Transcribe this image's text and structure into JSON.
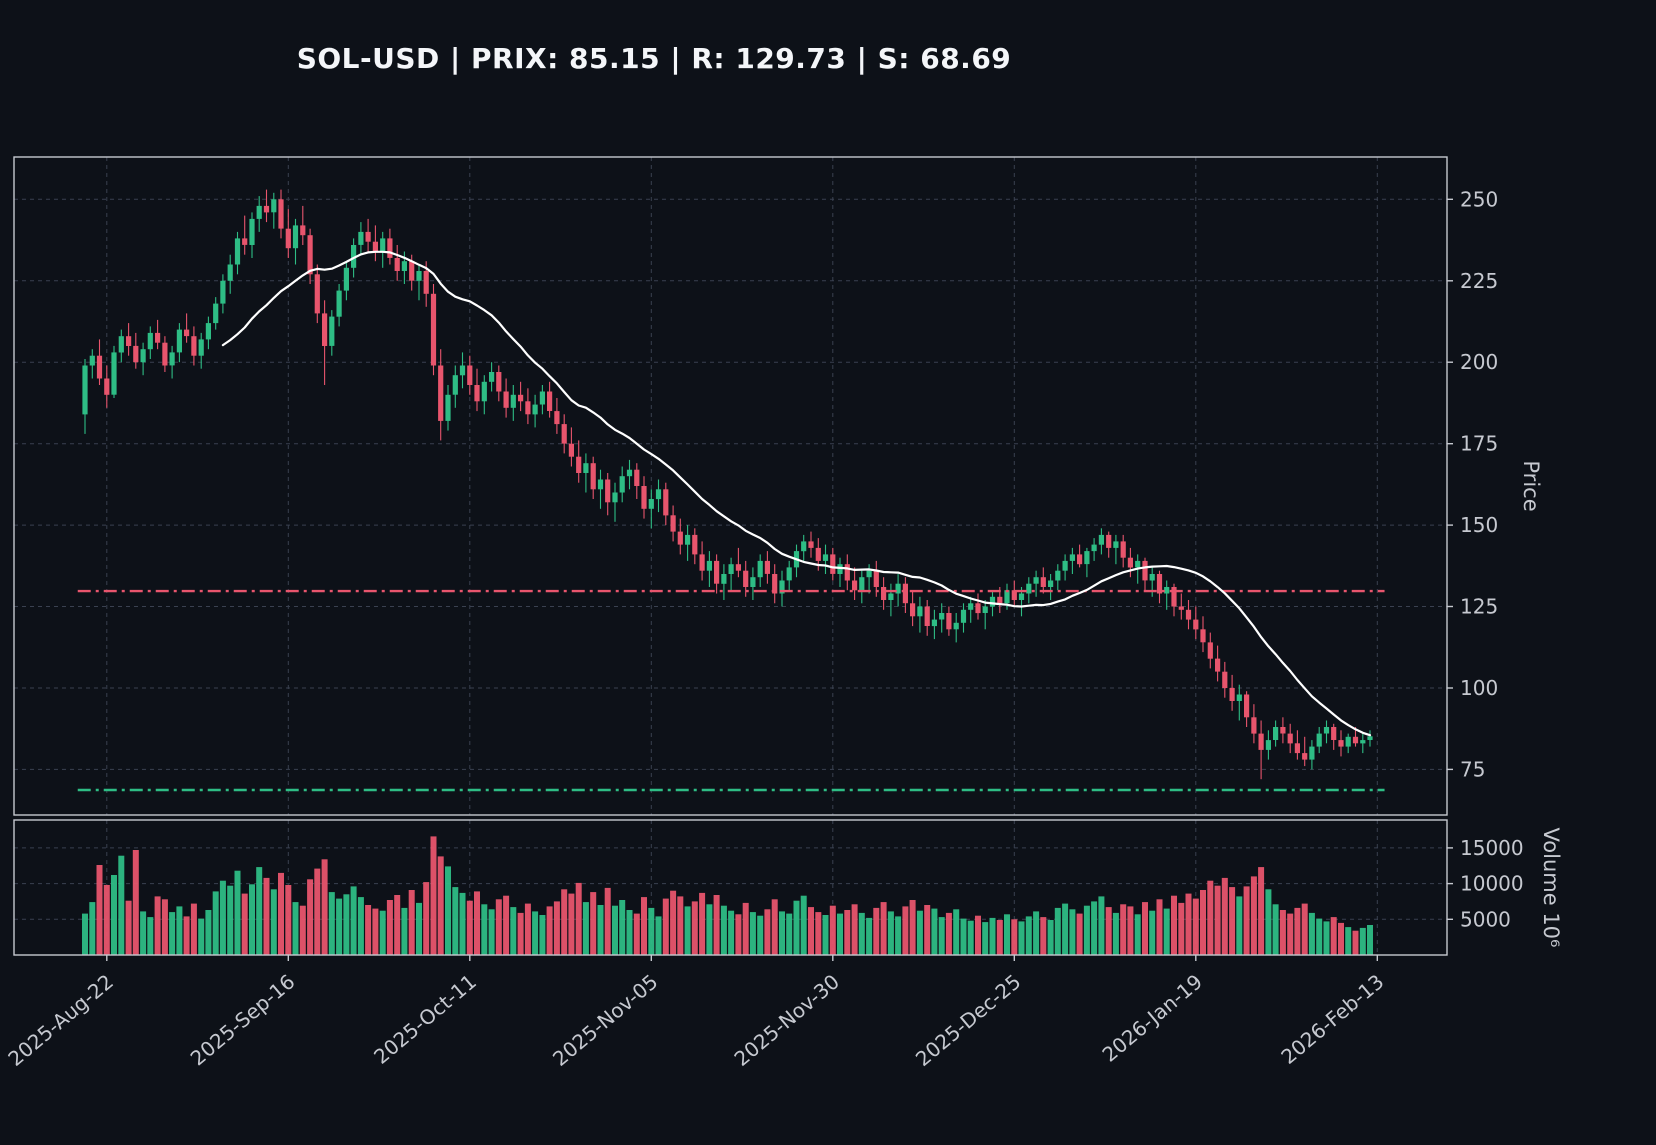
{
  "title": "SOL-USD | PRIX: 85.15 | R: 129.73 | S: 68.69",
  "chart_data": {
    "type": "candlestick",
    "title": "SOL-USD | PRIX: 85.15 | R: 129.73 | S: 68.69",
    "price_axis_label": "Price",
    "volume_axis_label": "Volume  10⁶",
    "last_price": 85.15,
    "resistance": 129.73,
    "support": 68.69,
    "moving_average_window": 20,
    "ylim": [
      61,
      263
    ],
    "vol_ylim": [
      0,
      18900
    ],
    "price_ticks": [
      75,
      100,
      125,
      150,
      175,
      200,
      225,
      250
    ],
    "volume_ticks": [
      5000,
      10000,
      15000
    ],
    "x_ticks": [
      {
        "index": 3,
        "label": "2025-Aug-22"
      },
      {
        "index": 28,
        "label": "2025-Sep-16"
      },
      {
        "index": 53,
        "label": "2025-Oct-11"
      },
      {
        "index": 78,
        "label": "2025-Nov-05"
      },
      {
        "index": 103,
        "label": "2025-Nov-30"
      },
      {
        "index": 128,
        "label": "2025-Dec-25"
      },
      {
        "index": 153,
        "label": "2026-Jan-19"
      },
      {
        "index": 178,
        "label": "2026-Feb-13"
      }
    ],
    "colors": {
      "bg": "#0d1118",
      "up": "#2ebd85",
      "down": "#e8556d",
      "ma": "#ffffff",
      "resistance": "#e8556d",
      "support": "#2ebd85",
      "grid": "#3a4150",
      "frame": "#c6c9d0",
      "text": "#c6c9d0",
      "title": "#f4f6f9"
    },
    "candles": [
      [
        184,
        201,
        178,
        199,
        5800
      ],
      [
        199,
        204,
        195,
        202,
        7400
      ],
      [
        202,
        207,
        193,
        195,
        12600
      ],
      [
        195,
        199,
        186,
        190,
        9800
      ],
      [
        190,
        205,
        189,
        203,
        11200
      ],
      [
        203,
        210,
        200,
        208,
        13900
      ],
      [
        208,
        212,
        202,
        205,
        7600
      ],
      [
        205,
        209,
        198,
        200,
        14700
      ],
      [
        200,
        206,
        196,
        204,
        6100
      ],
      [
        204,
        211,
        201,
        209,
        5300
      ],
      [
        209,
        213,
        204,
        206,
        8200
      ],
      [
        206,
        208,
        197,
        199,
        7800
      ],
      [
        199,
        205,
        195,
        203,
        6000
      ],
      [
        203,
        212,
        200,
        210,
        6800
      ],
      [
        210,
        215,
        206,
        208,
        5400
      ],
      [
        208,
        211,
        199,
        202,
        7200
      ],
      [
        202,
        209,
        198,
        207,
        5100
      ],
      [
        207,
        214,
        204,
        212,
        6300
      ],
      [
        212,
        220,
        210,
        218,
        8900
      ],
      [
        218,
        227,
        215,
        225,
        10400
      ],
      [
        225,
        233,
        221,
        230,
        9700
      ],
      [
        230,
        240,
        227,
        238,
        11800
      ],
      [
        238,
        245,
        233,
        236,
        8600
      ],
      [
        236,
        246,
        232,
        244,
        9900
      ],
      [
        244,
        251,
        240,
        248,
        12300
      ],
      [
        248,
        253,
        243,
        246,
        10800
      ],
      [
        246,
        252,
        241,
        250,
        9200
      ],
      [
        250,
        253,
        238,
        241,
        11500
      ],
      [
        241,
        247,
        232,
        235,
        9800
      ],
      [
        235,
        244,
        230,
        242,
        7400
      ],
      [
        242,
        248,
        236,
        239,
        6900
      ],
      [
        239,
        241,
        224,
        227,
        10600
      ],
      [
        227,
        230,
        212,
        215,
        12100
      ],
      [
        215,
        219,
        193,
        205,
        13400
      ],
      [
        205,
        216,
        202,
        214,
        8800
      ],
      [
        214,
        224,
        211,
        222,
        7900
      ],
      [
        222,
        231,
        219,
        229,
        8500
      ],
      [
        229,
        238,
        226,
        236,
        9600
      ],
      [
        236,
        243,
        233,
        240,
        8100
      ],
      [
        240,
        244,
        234,
        237,
        7000
      ],
      [
        237,
        242,
        231,
        234,
        6500
      ],
      [
        234,
        240,
        229,
        238,
        6200
      ],
      [
        238,
        241,
        230,
        232,
        7700
      ],
      [
        232,
        236,
        225,
        228,
        8400
      ],
      [
        228,
        234,
        224,
        231,
        6600
      ],
      [
        231,
        233,
        222,
        225,
        9100
      ],
      [
        225,
        230,
        219,
        228,
        7300
      ],
      [
        228,
        231,
        217,
        221,
        10200
      ],
      [
        221,
        224,
        196,
        199,
        16600
      ],
      [
        199,
        204,
        176,
        182,
        13800
      ],
      [
        182,
        193,
        179,
        190,
        12400
      ],
      [
        190,
        199,
        186,
        196,
        9500
      ],
      [
        196,
        203,
        192,
        199,
        8700
      ],
      [
        199,
        202,
        190,
        193,
        7600
      ],
      [
        193,
        198,
        185,
        188,
        8900
      ],
      [
        188,
        196,
        184,
        194,
        7100
      ],
      [
        194,
        200,
        191,
        197,
        6400
      ],
      [
        197,
        199,
        188,
        191,
        7800
      ],
      [
        191,
        195,
        183,
        186,
        8300
      ],
      [
        186,
        193,
        182,
        190,
        6700
      ],
      [
        190,
        194,
        185,
        188,
        5900
      ],
      [
        188,
        192,
        181,
        184,
        7200
      ],
      [
        184,
        190,
        180,
        187,
        6100
      ],
      [
        187,
        193,
        184,
        191,
        5600
      ],
      [
        191,
        194,
        183,
        185,
        6800
      ],
      [
        185,
        189,
        178,
        181,
        7500
      ],
      [
        181,
        184,
        172,
        175,
        9200
      ],
      [
        175,
        180,
        168,
        171,
        8600
      ],
      [
        171,
        176,
        163,
        166,
        10100
      ],
      [
        166,
        172,
        160,
        169,
        7400
      ],
      [
        169,
        171,
        158,
        161,
        8800
      ],
      [
        161,
        167,
        155,
        164,
        7000
      ],
      [
        164,
        166,
        153,
        157,
        9400
      ],
      [
        157,
        163,
        151,
        160,
        6900
      ],
      [
        160,
        168,
        157,
        165,
        7700
      ],
      [
        165,
        170,
        161,
        167,
        6300
      ],
      [
        167,
        169,
        158,
        162,
        5800
      ],
      [
        162,
        165,
        152,
        155,
        8100
      ],
      [
        155,
        161,
        149,
        158,
        6600
      ],
      [
        158,
        164,
        154,
        161,
        5400
      ],
      [
        161,
        163,
        150,
        153,
        7900
      ],
      [
        153,
        156,
        145,
        148,
        9000
      ],
      [
        148,
        152,
        141,
        144,
        8200
      ],
      [
        144,
        150,
        139,
        147,
        6800
      ],
      [
        147,
        149,
        138,
        141,
        7500
      ],
      [
        141,
        145,
        133,
        136,
        8700
      ],
      [
        136,
        142,
        131,
        139,
        7100
      ],
      [
        139,
        141,
        129,
        132,
        8400
      ],
      [
        132,
        138,
        127,
        135,
        6900
      ],
      [
        135,
        140,
        130,
        138,
        6200
      ],
      [
        138,
        143,
        134,
        136,
        5700
      ],
      [
        136,
        139,
        128,
        131,
        7300
      ],
      [
        131,
        137,
        127,
        134,
        6000
      ],
      [
        134,
        141,
        131,
        139,
        5500
      ],
      [
        139,
        142,
        132,
        135,
        6400
      ],
      [
        135,
        138,
        126,
        129,
        7800
      ],
      [
        129,
        136,
        125,
        133,
        6100
      ],
      [
        133,
        139,
        130,
        137,
        5800
      ],
      [
        137,
        144,
        134,
        142,
        7600
      ],
      [
        142,
        147,
        139,
        145,
        8300
      ],
      [
        145,
        148,
        140,
        143,
        6700
      ],
      [
        143,
        146,
        136,
        139,
        6000
      ],
      [
        139,
        144,
        135,
        141,
        5600
      ],
      [
        141,
        143,
        133,
        135,
        6900
      ],
      [
        135,
        140,
        131,
        138,
        5800
      ],
      [
        138,
        141,
        130,
        133,
        6300
      ],
      [
        133,
        137,
        127,
        130,
        7100
      ],
      [
        130,
        136,
        126,
        134,
        5900
      ],
      [
        134,
        138,
        129,
        136,
        5200
      ],
      [
        136,
        139,
        128,
        131,
        6600
      ],
      [
        131,
        134,
        124,
        127,
        7400
      ],
      [
        127,
        132,
        122,
        129,
        6100
      ],
      [
        129,
        135,
        125,
        132,
        5400
      ],
      [
        132,
        134,
        123,
        126,
        6800
      ],
      [
        126,
        130,
        119,
        122,
        7700
      ],
      [
        122,
        128,
        117,
        125,
        6200
      ],
      [
        125,
        127,
        116,
        119,
        7000
      ],
      [
        119,
        124,
        115,
        121,
        6500
      ],
      [
        121,
        126,
        117,
        123,
        5300
      ],
      [
        123,
        125,
        116,
        118,
        5900
      ],
      [
        118,
        123,
        114,
        120,
        6400
      ],
      [
        120,
        126,
        117,
        124,
        5100
      ],
      [
        124,
        128,
        120,
        126,
        4800
      ],
      [
        126,
        129,
        121,
        123,
        5500
      ],
      [
        123,
        127,
        118,
        125,
        4600
      ],
      [
        125,
        130,
        122,
        128,
        5200
      ],
      [
        128,
        131,
        123,
        126,
        4900
      ],
      [
        126,
        132,
        124,
        130,
        5700
      ],
      [
        130,
        133,
        125,
        127,
        5000
      ],
      [
        127,
        131,
        122,
        129,
        4700
      ],
      [
        129,
        134,
        126,
        132,
        5400
      ],
      [
        132,
        136,
        128,
        134,
        6100
      ],
      [
        134,
        137,
        129,
        131,
        5300
      ],
      [
        131,
        135,
        127,
        133,
        4900
      ],
      [
        133,
        138,
        130,
        136,
        6600
      ],
      [
        136,
        141,
        133,
        139,
        7200
      ],
      [
        139,
        143,
        135,
        141,
        6400
      ],
      [
        141,
        144,
        137,
        138,
        5800
      ],
      [
        138,
        143,
        134,
        142,
        6900
      ],
      [
        142,
        146,
        139,
        144,
        7500
      ],
      [
        144,
        149,
        141,
        147,
        8200
      ],
      [
        147,
        148,
        140,
        143,
        6700
      ],
      [
        143,
        147,
        138,
        145,
        5900
      ],
      [
        145,
        147,
        137,
        140,
        7100
      ],
      [
        140,
        143,
        134,
        137,
        6800
      ],
      [
        137,
        141,
        132,
        139,
        5700
      ],
      [
        139,
        140,
        130,
        133,
        7400
      ],
      [
        133,
        137,
        128,
        135,
        6200
      ],
      [
        135,
        136,
        126,
        129,
        7800
      ],
      [
        129,
        133,
        124,
        131,
        6500
      ],
      [
        131,
        132,
        122,
        125,
        8300
      ],
      [
        125,
        129,
        121,
        124,
        7300
      ],
      [
        124,
        127,
        118,
        121,
        8600
      ],
      [
        121,
        125,
        115,
        118,
        7900
      ],
      [
        118,
        122,
        111,
        114,
        9100
      ],
      [
        114,
        117,
        106,
        109,
        10400
      ],
      [
        109,
        113,
        102,
        105,
        9700
      ],
      [
        105,
        108,
        97,
        100,
        10800
      ],
      [
        100,
        104,
        93,
        96,
        9500
      ],
      [
        96,
        101,
        90,
        98,
        8200
      ],
      [
        98,
        99,
        88,
        91,
        9600
      ],
      [
        91,
        95,
        83,
        86,
        11000
      ],
      [
        86,
        90,
        72,
        81,
        12300
      ],
      [
        81,
        87,
        78,
        84,
        9200
      ],
      [
        84,
        90,
        82,
        88,
        7100
      ],
      [
        88,
        91,
        83,
        86,
        6300
      ],
      [
        86,
        89,
        80,
        83,
        5800
      ],
      [
        83,
        87,
        78,
        80,
        6600
      ],
      [
        80,
        85,
        76,
        78,
        7200
      ],
      [
        78,
        84,
        75,
        82,
        5900
      ],
      [
        82,
        88,
        80,
        86,
        5100
      ],
      [
        86,
        90,
        83,
        88,
        4700
      ],
      [
        88,
        89,
        81,
        84,
        5300
      ],
      [
        84,
        87,
        79,
        82,
        4500
      ],
      [
        82,
        86,
        80,
        85,
        3900
      ],
      [
        85,
        88,
        82,
        83,
        3400
      ],
      [
        83,
        86,
        80,
        84,
        3800
      ],
      [
        84,
        87,
        82,
        85.15,
        4200
      ]
    ]
  }
}
